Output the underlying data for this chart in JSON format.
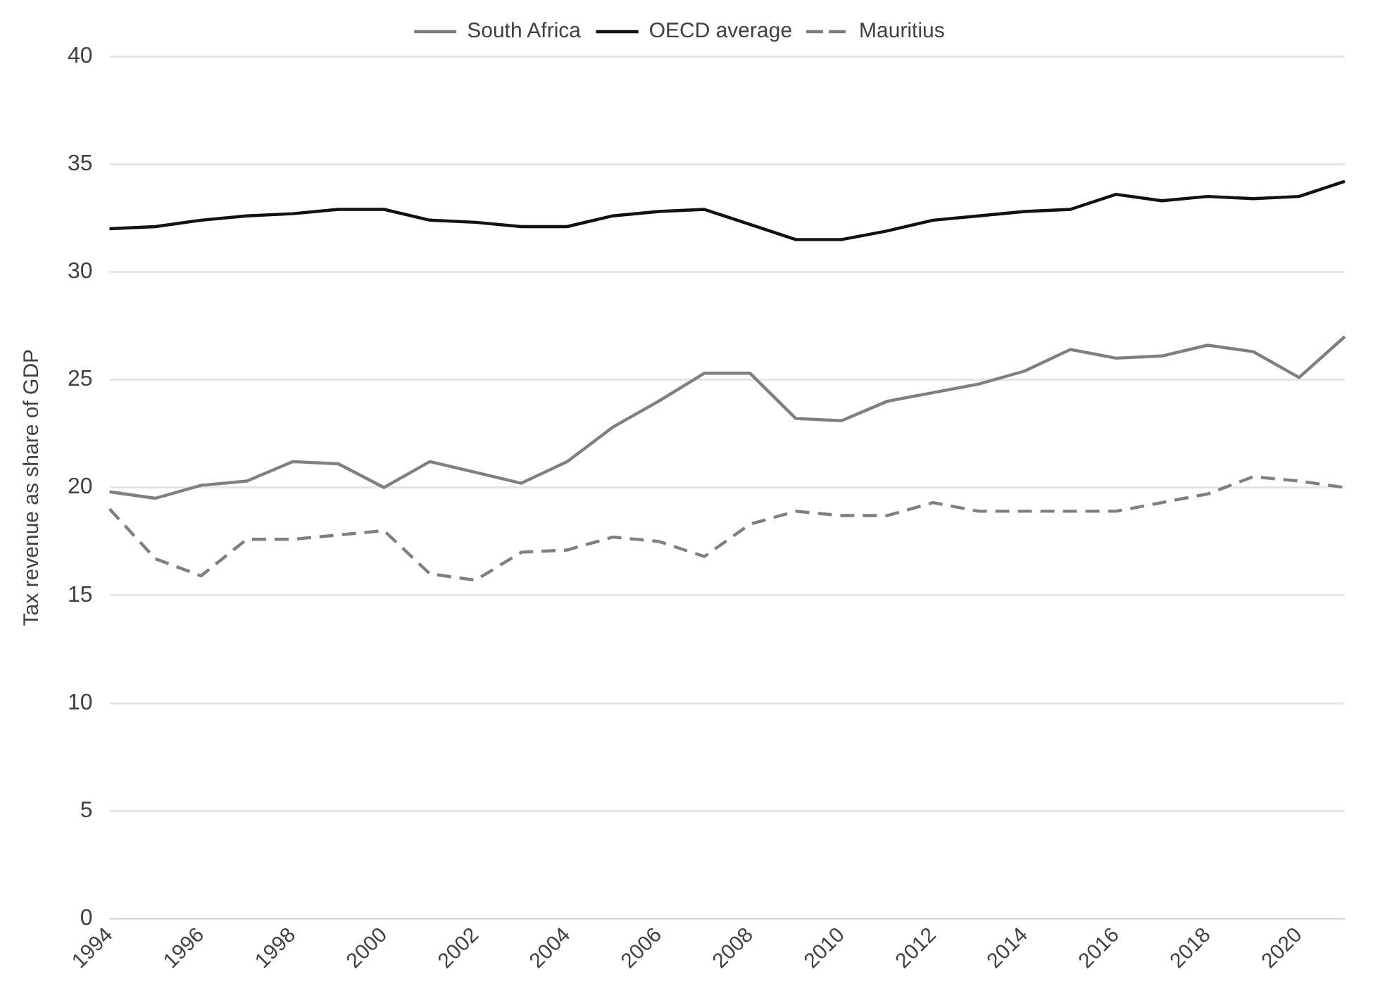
{
  "chart_data": {
    "type": "line",
    "ylabel": "Tax revenue as share of GDP",
    "categories": [
      "1994",
      null,
      "1996",
      null,
      "1998",
      null,
      "2000",
      null,
      "2002",
      null,
      "2004",
      null,
      "2006",
      null,
      "2008",
      null,
      "2010",
      null,
      "2012",
      null,
      "2014",
      null,
      "2016",
      null,
      "2018",
      null,
      "2020",
      null
    ],
    "series": [
      {
        "name": "South Africa",
        "color": "#7f7f7f",
        "line_style": "solid",
        "values": [
          19.8,
          19.5,
          20.1,
          20.3,
          21.2,
          21.1,
          20.0,
          21.2,
          20.7,
          20.2,
          21.2,
          22.8,
          24.0,
          25.3,
          25.3,
          23.2,
          23.1,
          24.0,
          24.4,
          24.8,
          25.4,
          26.4,
          26.0,
          26.1,
          26.6,
          26.3,
          25.1,
          27.0
        ]
      },
      {
        "name": "OECD average",
        "color": "#111111",
        "line_style": "solid",
        "values": [
          32.0,
          32.1,
          32.4,
          32.6,
          32.7,
          32.9,
          32.9,
          32.4,
          32.3,
          32.1,
          32.1,
          32.6,
          32.8,
          32.9,
          32.2,
          31.5,
          31.5,
          31.9,
          32.4,
          32.6,
          32.8,
          32.9,
          33.6,
          33.3,
          33.5,
          33.4,
          33.5,
          34.2
        ]
      },
      {
        "name": "Mauritius",
        "color": "#7f7f7f",
        "line_style": "dashed",
        "values": [
          19.0,
          16.7,
          15.9,
          17.6,
          17.6,
          17.8,
          18.0,
          16.0,
          15.7,
          17.0,
          17.1,
          17.7,
          17.5,
          16.8,
          18.3,
          18.9,
          18.7,
          18.7,
          19.3,
          18.9,
          18.9,
          18.9,
          18.9,
          19.3,
          19.7,
          20.5,
          20.3,
          20.0
        ]
      }
    ],
    "ylim": [
      0,
      40
    ],
    "yticks": [
      0,
      5,
      10,
      15,
      20,
      25,
      30,
      35,
      40
    ],
    "grid": "y",
    "legend": "top",
    "marker": "none"
  }
}
